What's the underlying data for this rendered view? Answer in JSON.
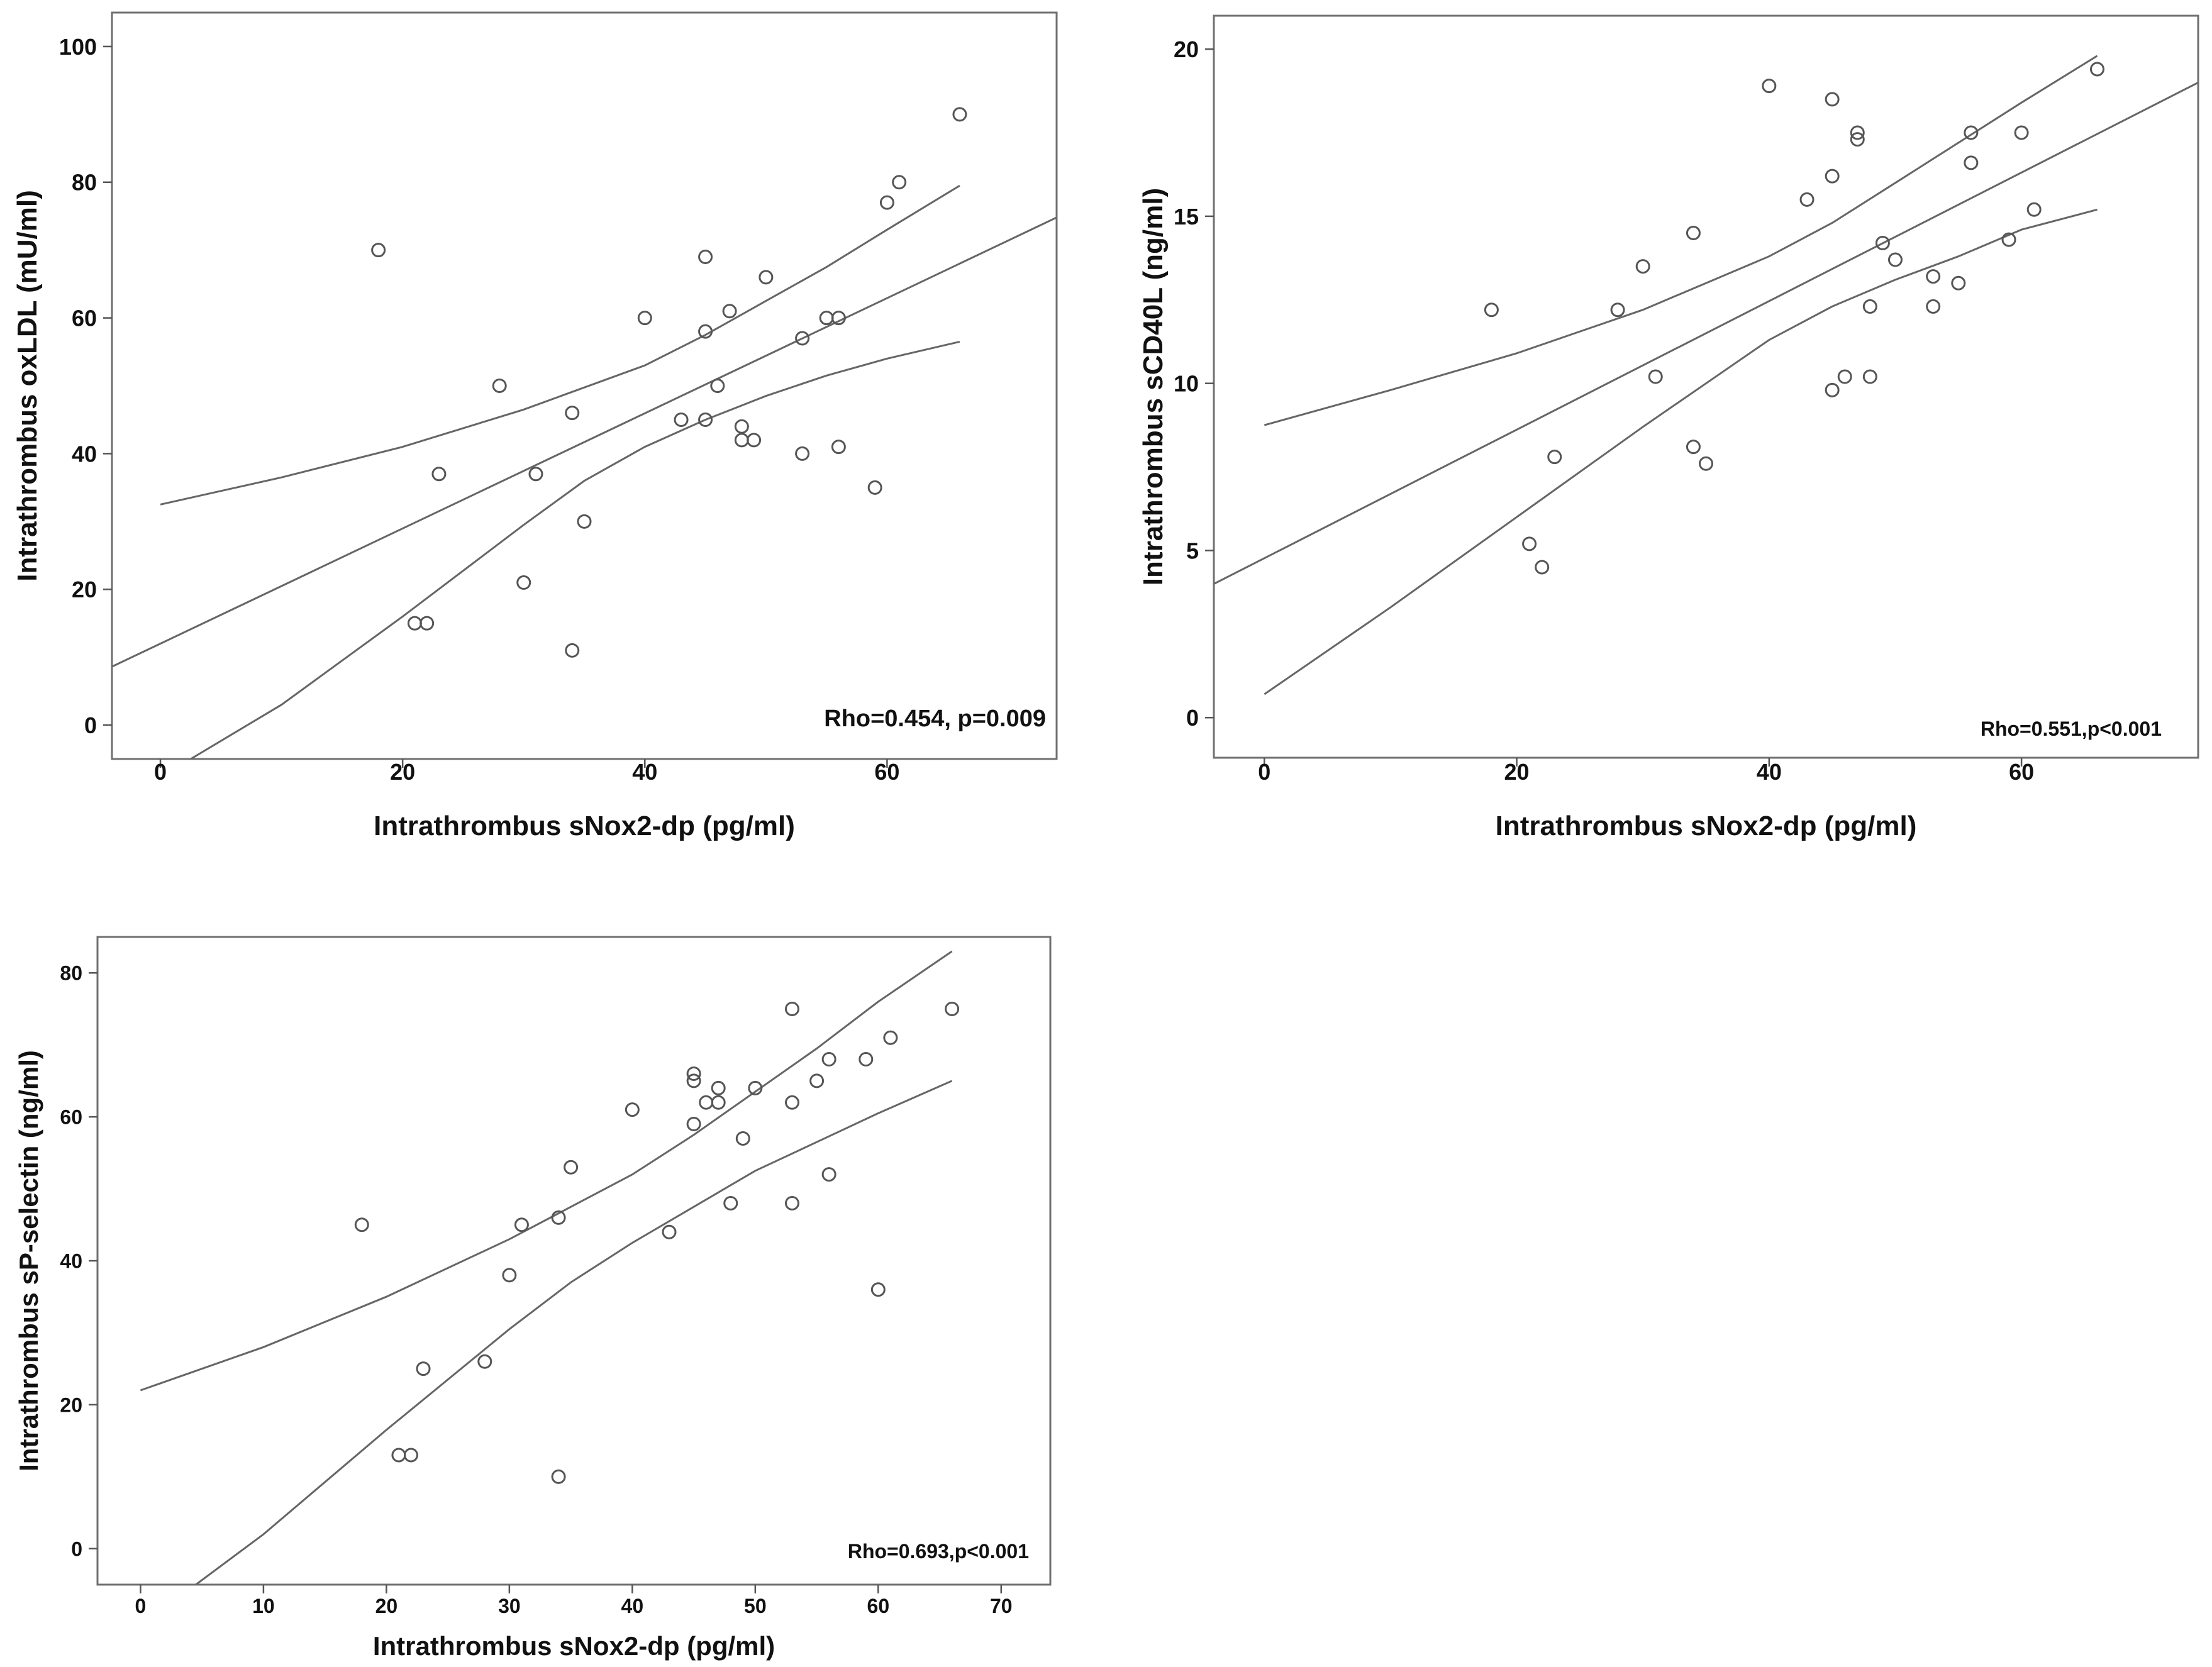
{
  "chart_data": [
    {
      "type": "scatter",
      "title": "",
      "xlabel": "Intrathrombus sNox2-dp (pg/ml)",
      "ylabel": "Intrathrombus oxLDL (mU/ml)",
      "annotation": "Rho=0.454, p=0.009",
      "xlim": [
        -4,
        74
      ],
      "ylim": [
        -5,
        105
      ],
      "x_ticks": [
        0,
        20,
        40,
        60
      ],
      "x_tick_labels": [
        "0",
        "20",
        "40",
        "60"
      ],
      "y_ticks": [
        0,
        20,
        40,
        60,
        80,
        100
      ],
      "y_tick_labels": [
        "0",
        "20",
        "40",
        "60",
        "80",
        "100"
      ],
      "points": [
        {
          "x": 18,
          "y": 70
        },
        {
          "x": 21,
          "y": 15
        },
        {
          "x": 22,
          "y": 15
        },
        {
          "x": 23,
          "y": 37
        },
        {
          "x": 28,
          "y": 50
        },
        {
          "x": 30,
          "y": 21
        },
        {
          "x": 31,
          "y": 37
        },
        {
          "x": 34,
          "y": 46
        },
        {
          "x": 34,
          "y": 11
        },
        {
          "x": 35,
          "y": 30
        },
        {
          "x": 40,
          "y": 60
        },
        {
          "x": 43,
          "y": 45
        },
        {
          "x": 45,
          "y": 69
        },
        {
          "x": 45,
          "y": 58
        },
        {
          "x": 45,
          "y": 45
        },
        {
          "x": 46,
          "y": 50
        },
        {
          "x": 47,
          "y": 61
        },
        {
          "x": 48,
          "y": 44
        },
        {
          "x": 48,
          "y": 42
        },
        {
          "x": 49,
          "y": 42
        },
        {
          "x": 50,
          "y": 66
        },
        {
          "x": 53,
          "y": 57
        },
        {
          "x": 53,
          "y": 40
        },
        {
          "x": 55,
          "y": 60
        },
        {
          "x": 56,
          "y": 60
        },
        {
          "x": 56,
          "y": 41
        },
        {
          "x": 59,
          "y": 35
        },
        {
          "x": 60,
          "y": 77
        },
        {
          "x": 61,
          "y": 80
        },
        {
          "x": 66,
          "y": 90
        }
      ],
      "fit_line": [
        {
          "x": -4,
          "y": 8.6
        },
        {
          "x": 74,
          "y": 74.8
        }
      ],
      "ci_upper": [
        {
          "x": 0,
          "y": 32.5
        },
        {
          "x": 10,
          "y": 36.5
        },
        {
          "x": 20,
          "y": 41
        },
        {
          "x": 30,
          "y": 46.5
        },
        {
          "x": 40,
          "y": 53
        },
        {
          "x": 45,
          "y": 57.5
        },
        {
          "x": 50,
          "y": 62.5
        },
        {
          "x": 55,
          "y": 67.5
        },
        {
          "x": 60,
          "y": 73
        },
        {
          "x": 66,
          "y": 79.5
        }
      ],
      "ci_lower": [
        {
          "x": 2.5,
          "y": -5
        },
        {
          "x": 10,
          "y": 3
        },
        {
          "x": 20,
          "y": 16
        },
        {
          "x": 30,
          "y": 29.5
        },
        {
          "x": 35,
          "y": 36
        },
        {
          "x": 40,
          "y": 41
        },
        {
          "x": 45,
          "y": 45
        },
        {
          "x": 50,
          "y": 48.5
        },
        {
          "x": 55,
          "y": 51.5
        },
        {
          "x": 60,
          "y": 54
        },
        {
          "x": 66,
          "y": 56.5
        }
      ]
    },
    {
      "type": "scatter",
      "title": "",
      "xlabel": "Intrathrombus sNox2-dp (pg/ml)",
      "ylabel": "Intrathrombus sCD40L (ng/ml)",
      "annotation": "Rho=0.551,p<0.001",
      "xlim": [
        -4,
        74
      ],
      "ylim": [
        -1.2,
        21
      ],
      "x_ticks": [
        0,
        20,
        40,
        60
      ],
      "x_tick_labels": [
        "0",
        "20",
        "40",
        "60"
      ],
      "y_ticks": [
        0,
        5,
        10,
        15,
        20
      ],
      "y_tick_labels": [
        "0",
        "5",
        "10",
        "15",
        "20"
      ],
      "points": [
        {
          "x": 18,
          "y": 12.2
        },
        {
          "x": 21,
          "y": 5.2
        },
        {
          "x": 22,
          "y": 4.5
        },
        {
          "x": 23,
          "y": 7.8
        },
        {
          "x": 28,
          "y": 12.2
        },
        {
          "x": 30,
          "y": 13.5
        },
        {
          "x": 31,
          "y": 10.2
        },
        {
          "x": 34,
          "y": 14.5
        },
        {
          "x": 34,
          "y": 8.1
        },
        {
          "x": 35,
          "y": 7.6
        },
        {
          "x": 40,
          "y": 18.9
        },
        {
          "x": 43,
          "y": 15.5
        },
        {
          "x": 45,
          "y": 18.5
        },
        {
          "x": 45,
          "y": 16.2
        },
        {
          "x": 45,
          "y": 9.8
        },
        {
          "x": 46,
          "y": 10.2
        },
        {
          "x": 47,
          "y": 17.5
        },
        {
          "x": 47,
          "y": 17.3
        },
        {
          "x": 48,
          "y": 12.3
        },
        {
          "x": 48,
          "y": 10.2
        },
        {
          "x": 49,
          "y": 14.2
        },
        {
          "x": 50,
          "y": 13.7
        },
        {
          "x": 53,
          "y": 13.2
        },
        {
          "x": 53,
          "y": 12.3
        },
        {
          "x": 55,
          "y": 13
        },
        {
          "x": 56,
          "y": 17.5
        },
        {
          "x": 56,
          "y": 16.6
        },
        {
          "x": 59,
          "y": 14.3
        },
        {
          "x": 60,
          "y": 17.5
        },
        {
          "x": 61,
          "y": 15.2
        },
        {
          "x": 66,
          "y": 19.4
        }
      ],
      "fit_line": [
        {
          "x": -4,
          "y": 4
        },
        {
          "x": 74,
          "y": 19
        }
      ],
      "ci_upper": [
        {
          "x": 0,
          "y": 8.75
        },
        {
          "x": 10,
          "y": 9.8
        },
        {
          "x": 20,
          "y": 10.9
        },
        {
          "x": 30,
          "y": 12.2
        },
        {
          "x": 40,
          "y": 13.8
        },
        {
          "x": 45,
          "y": 14.8
        },
        {
          "x": 50,
          "y": 16
        },
        {
          "x": 55,
          "y": 17.2
        },
        {
          "x": 60,
          "y": 18.4
        },
        {
          "x": 66,
          "y": 19.8
        }
      ],
      "ci_lower": [
        {
          "x": 0,
          "y": 0.7
        },
        {
          "x": 10,
          "y": 3.3
        },
        {
          "x": 20,
          "y": 6
        },
        {
          "x": 30,
          "y": 8.7
        },
        {
          "x": 35,
          "y": 10
        },
        {
          "x": 40,
          "y": 11.3
        },
        {
          "x": 45,
          "y": 12.3
        },
        {
          "x": 50,
          "y": 13.1
        },
        {
          "x": 55,
          "y": 13.8
        },
        {
          "x": 60,
          "y": 14.6
        },
        {
          "x": 66,
          "y": 15.2
        }
      ]
    },
    {
      "type": "scatter",
      "title": "",
      "xlabel": "Intrathrombus sNox2-dp (pg/ml)",
      "ylabel": "Intrathrombus sP-selectin (ng/ml)",
      "annotation": "Rho=0.693,p<0.001",
      "xlim": [
        -3.5,
        74
      ],
      "ylim": [
        -5,
        85
      ],
      "x_ticks": [
        0,
        10,
        20,
        30,
        40,
        50,
        60,
        70
      ],
      "x_tick_labels": [
        "0",
        "10",
        "20",
        "30",
        "40",
        "50",
        "60",
        "70"
      ],
      "y_ticks": [
        0,
        20,
        40,
        60,
        80
      ],
      "y_tick_labels": [
        "0",
        "20",
        "40",
        "60",
        "80"
      ],
      "points": [
        {
          "x": 18,
          "y": 45
        },
        {
          "x": 21,
          "y": 13
        },
        {
          "x": 22,
          "y": 13
        },
        {
          "x": 23,
          "y": 25
        },
        {
          "x": 28,
          "y": 26
        },
        {
          "x": 30,
          "y": 38
        },
        {
          "x": 31,
          "y": 45
        },
        {
          "x": 34,
          "y": 46
        },
        {
          "x": 34,
          "y": 10
        },
        {
          "x": 35,
          "y": 53
        },
        {
          "x": 40,
          "y": 61
        },
        {
          "x": 43,
          "y": 44
        },
        {
          "x": 45,
          "y": 66
        },
        {
          "x": 45,
          "y": 65
        },
        {
          "x": 45,
          "y": 59
        },
        {
          "x": 46,
          "y": 62
        },
        {
          "x": 47,
          "y": 64
        },
        {
          "x": 47,
          "y": 62
        },
        {
          "x": 48,
          "y": 48
        },
        {
          "x": 49,
          "y": 57
        },
        {
          "x": 50,
          "y": 64
        },
        {
          "x": 53,
          "y": 75
        },
        {
          "x": 53,
          "y": 62
        },
        {
          "x": 53,
          "y": 48
        },
        {
          "x": 55,
          "y": 65
        },
        {
          "x": 56,
          "y": 68
        },
        {
          "x": 56,
          "y": 52
        },
        {
          "x": 59,
          "y": 68
        },
        {
          "x": 60,
          "y": 36
        },
        {
          "x": 61,
          "y": 71
        },
        {
          "x": 66,
          "y": 75
        }
      ],
      "fit_line": [],
      "ci_upper": [
        {
          "x": 0,
          "y": 22
        },
        {
          "x": 10,
          "y": 28
        },
        {
          "x": 20,
          "y": 35
        },
        {
          "x": 30,
          "y": 43
        },
        {
          "x": 40,
          "y": 52
        },
        {
          "x": 45,
          "y": 57.5
        },
        {
          "x": 50,
          "y": 63.5
        },
        {
          "x": 55,
          "y": 69.5
        },
        {
          "x": 60,
          "y": 76
        },
        {
          "x": 66,
          "y": 83
        }
      ],
      "ci_lower": [
        {
          "x": 4.5,
          "y": -5
        },
        {
          "x": 10,
          "y": 2
        },
        {
          "x": 20,
          "y": 16.5
        },
        {
          "x": 30,
          "y": 30.5
        },
        {
          "x": 35,
          "y": 37
        },
        {
          "x": 40,
          "y": 42.5
        },
        {
          "x": 45,
          "y": 47.5
        },
        {
          "x": 50,
          "y": 52.5
        },
        {
          "x": 55,
          "y": 56.5
        },
        {
          "x": 60,
          "y": 60.5
        },
        {
          "x": 66,
          "y": 65
        }
      ]
    }
  ]
}
